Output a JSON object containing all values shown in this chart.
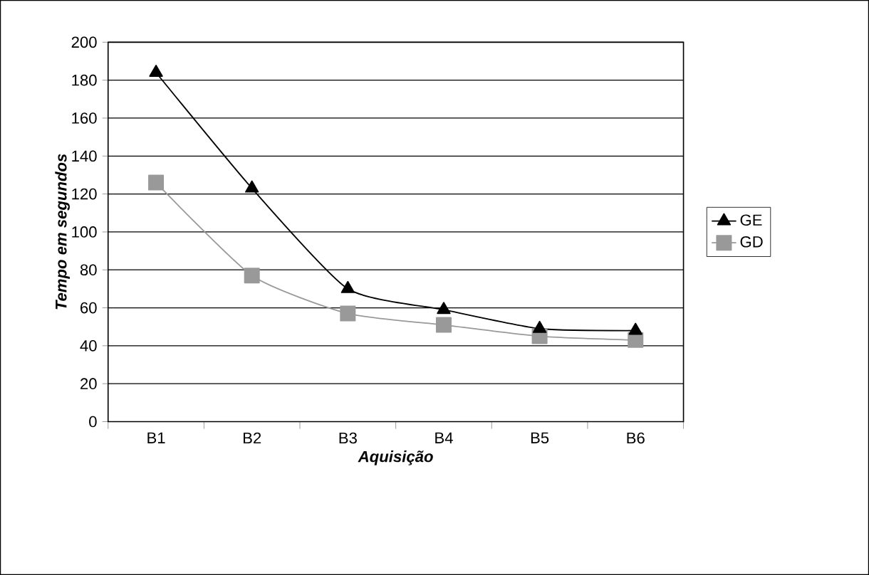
{
  "chart_data": {
    "type": "line",
    "xlabel": "Aquisição",
    "ylabel": "Tempo em segundos",
    "categories": [
      "B1",
      "B2",
      "B3",
      "B4",
      "B5",
      "B6"
    ],
    "series": [
      {
        "name": "GE",
        "color": "#000000",
        "marker": "triangle",
        "values": [
          184,
          123,
          70,
          59,
          49,
          48
        ]
      },
      {
        "name": "GD",
        "color": "#999999",
        "marker": "square",
        "values": [
          126,
          77,
          57,
          51,
          45,
          43
        ]
      }
    ],
    "ylim": [
      0,
      200
    ],
    "yticks": [
      0,
      20,
      40,
      60,
      80,
      100,
      120,
      140,
      160,
      180,
      200
    ],
    "grid": "y",
    "legend": "right",
    "line_style": "solid"
  }
}
